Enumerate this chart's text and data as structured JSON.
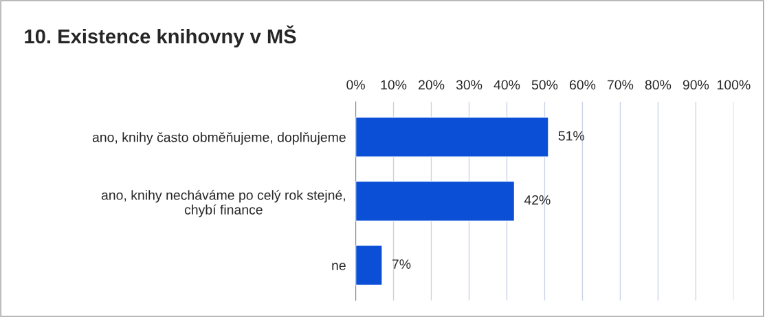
{
  "chart_data": {
    "type": "bar",
    "orientation": "horizontal",
    "title": "10. Existence knihovny v MŠ",
    "categories": [
      "ano, knihy často obměňujeme, doplňujeme",
      "ano, knihy necháváme po celý rok stejné,\nchybí finance",
      "ne"
    ],
    "values": [
      51,
      42,
      7
    ],
    "value_labels": [
      "51%",
      "42%",
      "7%"
    ],
    "color": "#0a4fd6",
    "xlim": [
      0,
      100
    ],
    "xticks": [
      {
        "value": 0,
        "label": "0%"
      },
      {
        "value": 10,
        "label": "10%"
      },
      {
        "value": 20,
        "label": "20%"
      },
      {
        "value": 30,
        "label": "30%"
      },
      {
        "value": 40,
        "label": "40%"
      },
      {
        "value": 50,
        "label": "50%"
      },
      {
        "value": 60,
        "label": "60%"
      },
      {
        "value": 70,
        "label": "70%"
      },
      {
        "value": 80,
        "label": "80%"
      },
      {
        "value": 90,
        "label": "90%"
      },
      {
        "value": 100,
        "label": "100%"
      }
    ],
    "grid": "x",
    "legend": false
  }
}
